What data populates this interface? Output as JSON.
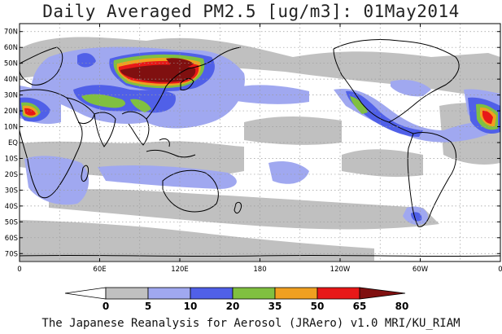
{
  "title": "Daily Averaged PM2.5 [ug/m3]: 01May2014",
  "footer": "The Japanese Reanalysis for Aerosol (JRAero) v1.0 MRI/KU_RIAM",
  "map": {
    "lon_range": [
      0,
      360
    ],
    "lat_range": [
      -75,
      75
    ],
    "lat_ticks": [
      {
        "v": 70,
        "label": "70N"
      },
      {
        "v": 60,
        "label": "60N"
      },
      {
        "v": 50,
        "label": "50N"
      },
      {
        "v": 40,
        "label": "40N"
      },
      {
        "v": 30,
        "label": "30N"
      },
      {
        "v": 20,
        "label": "20N"
      },
      {
        "v": 10,
        "label": "10N"
      },
      {
        "v": 0,
        "label": "EQ"
      },
      {
        "v": -10,
        "label": "10S"
      },
      {
        "v": -20,
        "label": "20S"
      },
      {
        "v": -30,
        "label": "30S"
      },
      {
        "v": -40,
        "label": "40S"
      },
      {
        "v": -50,
        "label": "50S"
      },
      {
        "v": -60,
        "label": "60S"
      },
      {
        "v": -70,
        "label": "70S"
      }
    ],
    "lon_ticks": [
      {
        "v": 0,
        "label": "0"
      },
      {
        "v": 60,
        "label": "60E"
      },
      {
        "v": 120,
        "label": "120E"
      },
      {
        "v": 180,
        "label": "180"
      },
      {
        "v": 240,
        "label": "120W"
      },
      {
        "v": 300,
        "label": "60W"
      },
      {
        "v": 360,
        "label": "0"
      }
    ],
    "grid": true
  },
  "colorbar": {
    "levels": [
      0,
      5,
      10,
      20,
      35,
      50,
      65,
      80
    ],
    "labels": [
      "0",
      "5",
      "10",
      "20",
      "35",
      "50",
      "65",
      "80"
    ],
    "colors": [
      "#ffffff",
      "#c0c0c0",
      "#a0a8f0",
      "#5060e8",
      "#80c040",
      "#f0a020",
      "#e81818",
      "#801010"
    ]
  }
}
